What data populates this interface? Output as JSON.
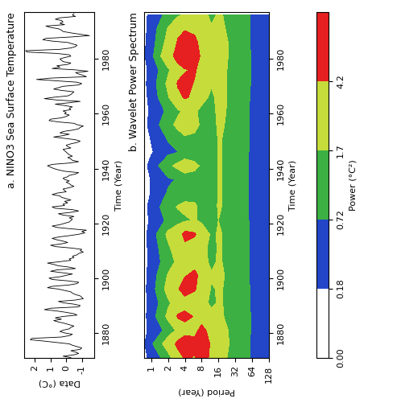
{
  "chart_data": [
    {
      "type": "line",
      "title": "a. NINO3 Sea Surface Temperature",
      "x_label": "Time (Year)",
      "y_label": "Data (°C)",
      "color": "#000000",
      "xlim": [
        1871,
        1997
      ],
      "xticks": [
        1880,
        1900,
        1920,
        1940,
        1960,
        1980
      ],
      "ylim": [
        -1.8,
        2.7
      ],
      "yticks": [
        -1,
        0,
        1,
        2
      ],
      "x": [
        1871,
        1871.5,
        1872,
        1872.5,
        1873,
        1873.5,
        1874,
        1874.5,
        1875,
        1875.5,
        1876,
        1876.5,
        1877,
        1877.5,
        1878,
        1878.5,
        1879,
        1879.5,
        1880,
        1880.5,
        1881,
        1881.5,
        1882,
        1882.5,
        1883,
        1883.5,
        1884,
        1884.5,
        1885,
        1885.5,
        1886,
        1886.5,
        1887,
        1887.5,
        1888,
        1888.5,
        1889,
        1889.5,
        1890,
        1890.5,
        1891,
        1891.5,
        1892,
        1892.5,
        1893,
        1893.5,
        1894,
        1894.5,
        1895,
        1895.5,
        1896,
        1896.5,
        1897,
        1897.5,
        1898,
        1898.5,
        1899,
        1899.5,
        1900,
        1900.5,
        1901,
        1901.5,
        1902,
        1902.5,
        1903,
        1903.5,
        1904,
        1904.5,
        1905,
        1905.5,
        1906,
        1906.5,
        1907,
        1907.5,
        1908,
        1908.5,
        1909,
        1909.5,
        1910,
        1910.5,
        1911,
        1911.5,
        1912,
        1912.5,
        1913,
        1913.5,
        1914,
        1914.5,
        1915,
        1915.5,
        1916,
        1916.5,
        1917,
        1917.5,
        1918,
        1918.5,
        1919,
        1919.5,
        1920,
        1920.5,
        1921,
        1921.5,
        1922,
        1922.5,
        1923,
        1923.5,
        1924,
        1924.5,
        1925,
        1925.5,
        1926,
        1926.5,
        1927,
        1927.5,
        1928,
        1928.5,
        1929,
        1929.5,
        1930,
        1930.5,
        1931,
        1931.5,
        1932,
        1932.5,
        1933,
        1933.5,
        1934,
        1934.5,
        1935,
        1935.5,
        1936,
        1936.5,
        1937,
        1937.5,
        1938,
        1938.5,
        1939,
        1939.5,
        1940,
        1940.5,
        1941,
        1941.5,
        1942,
        1942.5,
        1943,
        1943.5,
        1944,
        1944.5,
        1945,
        1945.5,
        1946,
        1946.5,
        1947,
        1947.5,
        1948,
        1948.5,
        1949,
        1949.5,
        1950,
        1950.5,
        1951,
        1951.5,
        1952,
        1952.5,
        1953,
        1953.5,
        1954,
        1954.5,
        1955,
        1955.5,
        1956,
        1956.5,
        1957,
        1957.5,
        1958,
        1958.5,
        1959,
        1959.5,
        1960,
        1960.5,
        1961,
        1961.5,
        1962,
        1962.5,
        1963,
        1963.5,
        1964,
        1964.5,
        1965,
        1965.5,
        1966,
        1966.5,
        1967,
        1967.5,
        1968,
        1968.5,
        1969,
        1969.5,
        1970,
        1970.5,
        1971,
        1971.5,
        1972,
        1972.5,
        1973,
        1973.5,
        1974,
        1974.5,
        1975,
        1975.5,
        1976,
        1976.5,
        1977,
        1977.5,
        1978,
        1978.5,
        1979,
        1979.5,
        1980,
        1980.5,
        1981,
        1981.5,
        1982,
        1982.5,
        1983,
        1983.5,
        1984,
        1984.5,
        1985,
        1985.5,
        1986,
        1986.5,
        1987,
        1987.5,
        1988,
        1988.5,
        1989,
        1989.5,
        1990,
        1990.5,
        1991,
        1991.5,
        1992,
        1992.5,
        1993,
        1993.5,
        1994,
        1994.5,
        1995,
        1995.5,
        1996,
        1996.5
      ],
      "values": [
        -0.3,
        0.2,
        -0.5,
        -0.8,
        -0.6,
        -0.3,
        -0.9,
        -1.0,
        -0.7,
        -0.4,
        -0.2,
        0.6,
        1.4,
        2.3,
        2.2,
        0.3,
        -0.2,
        -0.4,
        0.1,
        0.4,
        0.2,
        -0.2,
        -0.3,
        -0.5,
        -0.2,
        0.1,
        0.5,
        0.8,
        0.3,
        0.7,
        0.2,
        -0.7,
        -0.5,
        0.0,
        0.6,
        1.4,
        1.0,
        -0.8,
        -0.9,
        -0.5,
        0.2,
        0.5,
        -0.6,
        -1.1,
        -1.0,
        -0.9,
        -0.6,
        -0.4,
        -0.3,
        0.1,
        0.5,
        1.2,
        0.9,
        -0.2,
        -0.7,
        -0.8,
        -0.1,
        0.9,
        1.1,
        0.4,
        0.0,
        -0.4,
        0.3,
        1.0,
        0.6,
        -0.6,
        -0.2,
        0.5,
        0.8,
        1.2,
        0.4,
        -0.3,
        -0.2,
        -0.5,
        -0.4,
        -0.7,
        -0.8,
        -1.1,
        -0.9,
        -1.0,
        -0.3,
        0.7,
        1.0,
        0.3,
        -0.1,
        0.2,
        0.6,
        0.9,
        0.5,
        -0.2,
        -0.8,
        -1.2,
        -1.0,
        -1.3,
        -0.3,
        0.6,
        0.9,
        0.4,
        0.1,
        -0.2,
        -0.3,
        -0.4,
        -0.2,
        -0.5,
        0.2,
        0.5,
        -0.3,
        -0.8,
        -0.4,
        0.7,
        0.9,
        0.1,
        0.2,
        -0.1,
        0.1,
        -0.3,
        0.0,
        0.3,
        0.4,
        0.9,
        0.6,
        0.0,
        0.1,
        0.2,
        -0.2,
        -0.5,
        -0.3,
        -0.2,
        0.0,
        -0.2,
        0.1,
        0.2,
        -0.1,
        -0.2,
        -0.6,
        -0.8,
        0.1,
        0.5,
        0.8,
        1.0,
        1.2,
        0.9,
        -0.2,
        -0.8,
        -0.4,
        -0.3,
        -0.1,
        -0.4,
        -0.2,
        -0.1,
        0.0,
        0.1,
        0.2,
        -0.3,
        -0.1,
        0.0,
        -0.3,
        -0.7,
        -0.9,
        -0.6,
        0.1,
        0.8,
        0.2,
        -0.2,
        0.4,
        0.2,
        -0.4,
        -0.8,
        -0.9,
        -1.1,
        -0.7,
        -0.5,
        0.5,
        1.1,
        1.0,
        0.3,
        0.0,
        -0.2,
        0.1,
        0.0,
        0.2,
        -0.3,
        -0.2,
        -0.4,
        0.1,
        0.7,
        -0.2,
        -0.9,
        0.6,
        1.4,
        0.8,
        -0.1,
        -0.3,
        -0.4,
        -0.5,
        0.3,
        0.8,
        0.5,
        0.2,
        -0.8,
        -1.0,
        -0.7,
        0.6,
        1.9,
        1.0,
        -1.3,
        -1.1,
        -0.8,
        -0.6,
        -1.4,
        -0.6,
        0.9,
        0.4,
        0.6,
        -0.1,
        -0.3,
        0.2,
        0.3,
        0.4,
        0.1,
        -0.3,
        -0.2,
        0.6,
        2.5,
        2.6,
        0.4,
        -0.3,
        -0.6,
        -0.7,
        -0.4,
        -0.1,
        0.9,
        1.5,
        1.3,
        -0.3,
        -1.5,
        -0.9,
        -0.3,
        0.2,
        0.3,
        0.5,
        1.0,
        1.3,
        0.1,
        0.4,
        0.2,
        0.3,
        0.7,
        0.4,
        -0.6,
        -0.4,
        -0.5
      ]
    },
    {
      "type": "contour",
      "title": "b. Wavelet Power Spectrum",
      "x_label": "Time (Year)",
      "y_label": "Period (Year)",
      "log": "y",
      "xlim": [
        1871,
        1997
      ],
      "xticks": [
        1880,
        1900,
        1920,
        1940,
        1960,
        1980
      ],
      "ylim": [
        0.75,
        128
      ],
      "yticks": [
        1,
        2,
        4,
        8,
        16,
        32,
        64,
        128
      ],
      "x": [
        1871,
        1876,
        1881,
        1886,
        1891,
        1896,
        1901,
        1906,
        1911,
        1916,
        1921,
        1926,
        1931,
        1936,
        1941,
        1946,
        1951,
        1956,
        1961,
        1966,
        1971,
        1976,
        1981,
        1986,
        1991,
        1996
      ],
      "periods": [
        0.75,
        1,
        2,
        3,
        4,
        6,
        8,
        12,
        16,
        32,
        64,
        128
      ],
      "power": [
        [
          0.1,
          0.15,
          0.1,
          0.1,
          0.12,
          0.1,
          0.1,
          0.08,
          0.1,
          0.1,
          0.08,
          0.1,
          0.08,
          0.06,
          0.1,
          0.06,
          0.08,
          0.1,
          0.08,
          0.1,
          0.12,
          0.1,
          0.15,
          0.12,
          0.1,
          0.1
        ],
        [
          0.3,
          0.6,
          0.3,
          0.4,
          0.3,
          0.4,
          0.35,
          0.3,
          0.3,
          0.35,
          0.25,
          0.3,
          0.2,
          0.2,
          0.3,
          0.15,
          0.2,
          0.3,
          0.25,
          0.3,
          0.35,
          0.3,
          0.5,
          0.4,
          0.35,
          0.3
        ],
        [
          1.2,
          2.5,
          1.0,
          2.0,
          1.5,
          2.2,
          1.8,
          1.2,
          1.5,
          2.0,
          0.9,
          1.3,
          0.8,
          0.6,
          1.5,
          0.5,
          0.8,
          1.4,
          0.9,
          1.6,
          2.0,
          1.5,
          3.0,
          2.2,
          1.8,
          1.0
        ],
        [
          3.0,
          5.0,
          2.0,
          4.5,
          2.5,
          4.0,
          3.0,
          2.0,
          2.5,
          3.0,
          1.2,
          1.8,
          1.0,
          0.8,
          2.0,
          0.7,
          1.2,
          2.0,
          1.5,
          3.5,
          4.5,
          3.0,
          5.5,
          4.5,
          3.5,
          1.5
        ],
        [
          4.5,
          6.0,
          3.0,
          5.0,
          3.0,
          5.5,
          4.0,
          2.5,
          3.5,
          5.0,
          1.5,
          2.0,
          1.2,
          1.0,
          2.5,
          0.9,
          1.5,
          2.5,
          2.0,
          4.5,
          5.0,
          4.0,
          7.0,
          5.5,
          4.0,
          2.0
        ],
        [
          4.0,
          5.0,
          3.5,
          4.0,
          2.5,
          4.5,
          5.0,
          3.0,
          3.0,
          4.5,
          1.8,
          1.8,
          1.5,
          1.2,
          2.0,
          1.0,
          1.5,
          2.0,
          1.8,
          3.5,
          4.0,
          4.5,
          6.0,
          5.0,
          3.5,
          2.5
        ],
        [
          6.5,
          7.0,
          5.0,
          3.0,
          2.0,
          2.5,
          3.0,
          2.0,
          2.0,
          2.5,
          1.5,
          1.5,
          1.3,
          1.2,
          1.5,
          1.0,
          1.2,
          1.5,
          1.5,
          2.0,
          2.5,
          3.0,
          3.5,
          3.0,
          2.5,
          2.0
        ],
        [
          3.0,
          3.5,
          3.0,
          2.0,
          1.5,
          1.6,
          1.8,
          1.5,
          1.4,
          1.5,
          1.2,
          1.2,
          1.0,
          1.0,
          1.1,
          0.9,
          1.0,
          1.2,
          1.3,
          1.5,
          1.8,
          2.0,
          2.2,
          2.0,
          1.8,
          1.5
        ],
        [
          2.0,
          2.2,
          2.0,
          1.8,
          1.8,
          1.8,
          1.9,
          1.8,
          1.8,
          1.8,
          1.7,
          1.8,
          1.8,
          1.8,
          1.8,
          1.8,
          1.8,
          1.9,
          2.0,
          2.0,
          2.0,
          2.0,
          2.0,
          2.0,
          1.9,
          1.8
        ],
        [
          1.3,
          1.3,
          1.4,
          1.4,
          1.3,
          1.3,
          1.2,
          1.2,
          1.2,
          1.2,
          1.1,
          1.1,
          1.1,
          1.1,
          1.1,
          1.1,
          1.2,
          1.2,
          1.2,
          1.3,
          1.3,
          1.3,
          1.4,
          1.4,
          1.3,
          1.3
        ],
        [
          0.6,
          0.6,
          0.65,
          0.65,
          0.6,
          0.6,
          0.6,
          0.6,
          0.6,
          0.6,
          0.6,
          0.6,
          0.6,
          0.6,
          0.6,
          0.6,
          0.6,
          0.6,
          0.6,
          0.6,
          0.65,
          0.65,
          0.65,
          0.6,
          0.6,
          0.6
        ],
        [
          0.3,
          0.3,
          0.3,
          0.3,
          0.3,
          0.3,
          0.3,
          0.3,
          0.3,
          0.3,
          0.3,
          0.3,
          0.3,
          0.3,
          0.3,
          0.3,
          0.3,
          0.3,
          0.3,
          0.3,
          0.3,
          0.3,
          0.3,
          0.3,
          0.3,
          0.3
        ]
      ],
      "colorbar": {
        "label": "Power (°C²)",
        "range": [
          0,
          10
        ],
        "levels": [
          0,
          0.18,
          0.72,
          1.7,
          4.2,
          10
        ],
        "colors": [
          "#ffffff",
          "#2346c8",
          "#3cb043",
          "#c5dc3a",
          "#e62020"
        ],
        "ticks": [
          {
            "value": 0,
            "label": "0.00"
          },
          0.18,
          0.72,
          1.7,
          4.2
        ]
      }
    }
  ]
}
